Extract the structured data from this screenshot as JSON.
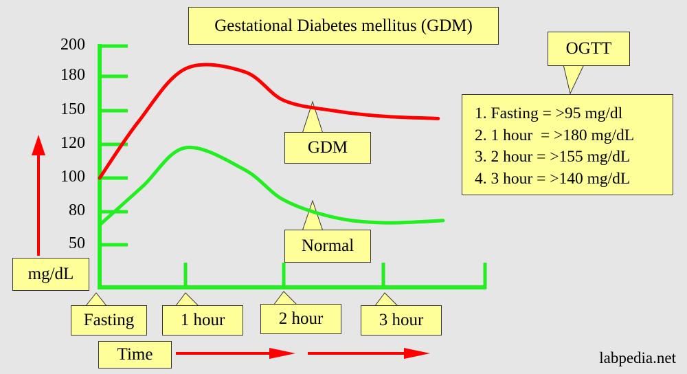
{
  "chart_data": {
    "type": "line",
    "title": "Gestational Diabetes mellitus (GDM)",
    "ylabel": "mg/dL",
    "xlabel": "Time",
    "yticks": [
      200,
      180,
      150,
      120,
      100,
      80,
      50
    ],
    "categories": [
      "Fasting",
      "1 hour",
      "2 hour",
      "3 hour"
    ],
    "series": [
      {
        "name": "GDM",
        "color": "#ff0000",
        "x": [
          0,
          0.45,
          1,
          1.6,
          2,
          2.5,
          3,
          3.55
        ],
        "y": [
          100,
          140,
          185,
          183,
          159,
          150,
          145,
          143
        ]
      },
      {
        "name": "Normal",
        "color": "#22ee22",
        "x": [
          0,
          0.5,
          1,
          1.6,
          2,
          2.5,
          3,
          3.6
        ],
        "y": [
          68,
          95,
          118,
          105,
          87,
          75,
          70,
          72
        ]
      }
    ],
    "callout": "OGTT",
    "criteria": [
      "1. Fasting = >95 mg/dl",
      "2. 1 hour  = >180 mg/dL",
      "3. 2 hour = >155 mg/dL",
      "4. 3 hour = >140 mg/dL"
    ]
  },
  "watermark": "labpedia.net"
}
